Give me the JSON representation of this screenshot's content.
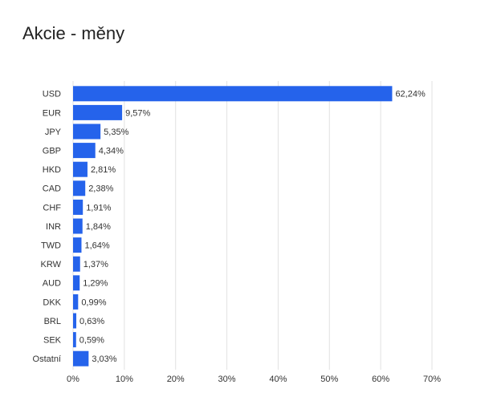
{
  "chart_data": {
    "type": "hbar",
    "title": "Akcie - měny",
    "categories": [
      "USD",
      "EUR",
      "JPY",
      "GBP",
      "HKD",
      "CAD",
      "CHF",
      "INR",
      "TWD",
      "KRW",
      "AUD",
      "DKK",
      "BRL",
      "SEK",
      "Ostatní"
    ],
    "values": [
      62.24,
      9.57,
      5.35,
      4.34,
      2.81,
      2.38,
      1.91,
      1.84,
      1.64,
      1.37,
      1.29,
      0.99,
      0.63,
      0.59,
      3.03
    ],
    "value_labels": [
      "62,24%",
      "9,57%",
      "5,35%",
      "4,34%",
      "2,81%",
      "2,38%",
      "1,91%",
      "1,84%",
      "1,64%",
      "1,37%",
      "1,29%",
      "0,99%",
      "0,63%",
      "0,59%",
      "3,03%"
    ],
    "color": "#2563eb",
    "xlim": [
      0,
      70
    ],
    "xticks": [
      {
        "value": 0,
        "label": "0%"
      },
      {
        "value": 10,
        "label": "10%"
      },
      {
        "value": 20,
        "label": "20%"
      },
      {
        "value": 30,
        "label": "30%"
      },
      {
        "value": 40,
        "label": "40%"
      },
      {
        "value": 50,
        "label": "50%"
      },
      {
        "value": 60,
        "label": "60%"
      },
      {
        "value": 70,
        "label": "70%"
      }
    ],
    "grid": true
  }
}
